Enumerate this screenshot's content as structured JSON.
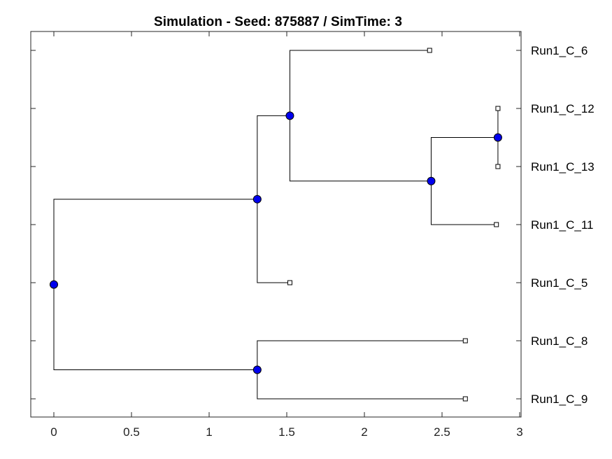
{
  "title": "Simulation - Seed: 875887 / SimTime: 3",
  "chart_data": {
    "type": "dendrogram",
    "xlim": [
      0,
      3
    ],
    "x_ticks": [
      "0",
      "0.5",
      "1",
      "1.5",
      "2",
      "2.5",
      "3"
    ],
    "leaf_labels": [
      "Run1_C_6",
      "Run1_C_12",
      "Run1_C_13",
      "Run1_C_11",
      "Run1_C_5",
      "Run1_C_8",
      "Run1_C_9"
    ],
    "leaves": [
      {
        "label": "Run1_C_6",
        "time": 2.42
      },
      {
        "label": "Run1_C_12",
        "time": 2.86
      },
      {
        "label": "Run1_C_13",
        "time": 2.86
      },
      {
        "label": "Run1_C_11",
        "time": 2.85
      },
      {
        "label": "Run1_C_5",
        "time": 1.52
      },
      {
        "label": "Run1_C_8",
        "time": 2.65
      },
      {
        "label": "Run1_C_9",
        "time": 2.65
      }
    ],
    "internal_nodes": [
      {
        "id": "root",
        "time": 0.0,
        "children": [
          "n_a",
          "n_f"
        ]
      },
      {
        "id": "n_a",
        "time": 1.31,
        "children": [
          "n_b",
          "Run1_C_5"
        ]
      },
      {
        "id": "n_b",
        "time": 1.52,
        "children": [
          "Run1_C_6",
          "n_c"
        ]
      },
      {
        "id": "n_c",
        "time": 2.43,
        "children": [
          "n_d",
          "Run1_C_11"
        ]
      },
      {
        "id": "n_d",
        "time": 2.86,
        "children": [
          "Run1_C_12",
          "Run1_C_13"
        ]
      },
      {
        "id": "n_f",
        "time": 1.31,
        "children": [
          "Run1_C_8",
          "Run1_C_9"
        ]
      }
    ],
    "colors": {
      "node": "#0000ee",
      "line": "#000000"
    }
  }
}
